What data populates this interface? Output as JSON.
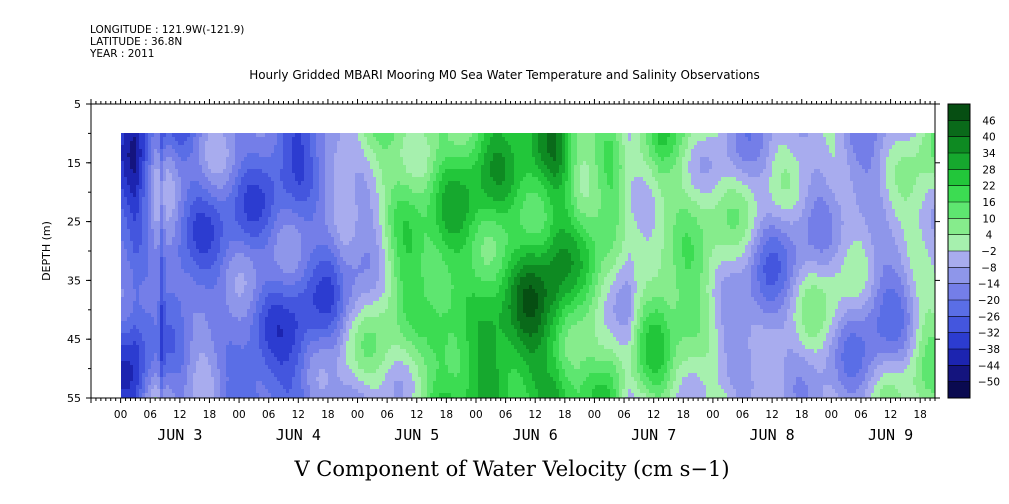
{
  "header": {
    "longitude": "LONGITUDE : 121.9W(-121.9)",
    "latitude": "LATITUDE : 36.8N",
    "year": "YEAR : 2011"
  },
  "chart_data": {
    "type": "heatmap",
    "title": "Hourly Gridded MBARI Mooring M0 Sea Water Temperature and Salinity Observations",
    "xlabel": "V Component of Water Velocity (cm s−1)",
    "ylabel": "DEPTH (m)",
    "ylim": [
      5,
      55
    ],
    "y_reversed": true,
    "y_ticks": [
      5,
      15,
      25,
      35,
      45,
      55
    ],
    "data_depth_range": [
      10,
      55
    ],
    "x_hours_range": [
      -6,
      165
    ],
    "data_hours_start": 0,
    "x_hour_ticks": [
      "00",
      "06",
      "12",
      "18",
      "00",
      "06",
      "12",
      "18",
      "00",
      "06",
      "12",
      "18",
      "00",
      "06",
      "12",
      "18",
      "00",
      "06",
      "12",
      "18",
      "00",
      "06",
      "12",
      "18",
      "00",
      "06",
      "12",
      "18"
    ],
    "day_labels": [
      "JUN  3",
      "JUN  4",
      "JUN  5",
      "JUN  6",
      "JUN  7",
      "JUN  8",
      "JUN  9"
    ],
    "colorbar": {
      "levels": [
        -50,
        -44,
        -38,
        -32,
        -26,
        -20,
        -14,
        -8,
        -2,
        4,
        10,
        16,
        22,
        28,
        34,
        40,
        46
      ],
      "labels": [
        "46",
        "40",
        "34",
        "28",
        "22",
        "16",
        "10",
        "4",
        "−2",
        "−8",
        "−14",
        "−20",
        "−26",
        "−32",
        "−38",
        "−44",
        "−50"
      ]
    },
    "grid": false,
    "legend": "colorbar-right"
  }
}
